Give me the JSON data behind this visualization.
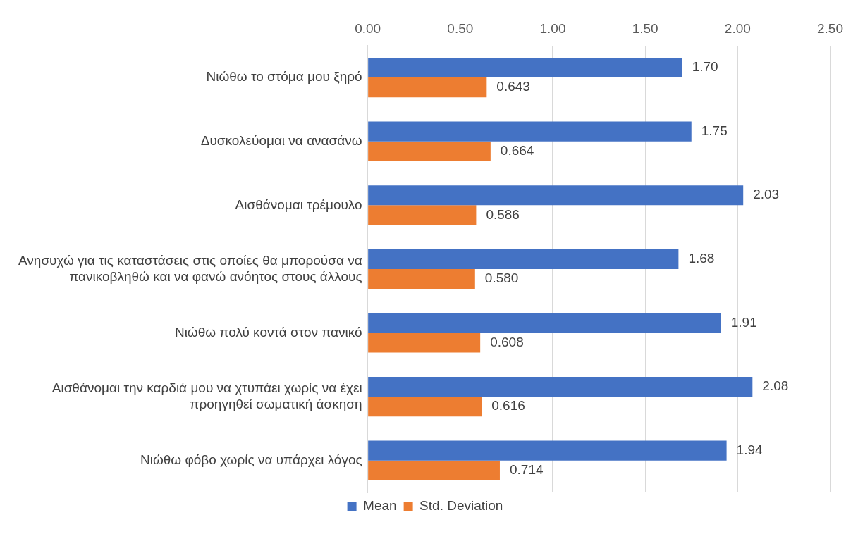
{
  "chart_data": {
    "type": "bar",
    "orientation": "horizontal",
    "categories": [
      "Νιώθω το στόμα μου ξηρό",
      "Δυσκολεύομαι να ανασάνω",
      "Αισθάνομαι τρέμουλο",
      "Ανησυχώ για τις καταστάσεις στις οποίες θα μπορούσα να πανικοβληθώ και να φανώ ανόητος στους άλλους",
      "Νιώθω πολύ κοντά στον πανικό",
      "Αισθάνομαι την καρδιά μου να χτυπάει χωρίς να έχει προηγηθεί σωματική άσκηση",
      "Νιώθω φόβο χωρίς να υπάρχει λόγος"
    ],
    "series": [
      {
        "name": "Mean",
        "color": "#4472c4",
        "values": [
          1.7,
          1.75,
          2.03,
          1.68,
          1.91,
          2.08,
          1.94
        ],
        "value_labels": [
          "1.70",
          "1.75",
          "2.03",
          "1.68",
          "1.91",
          "2.08",
          "1.94"
        ]
      },
      {
        "name": "Std. Deviation",
        "color": "#ed7d31",
        "values": [
          0.643,
          0.664,
          0.586,
          0.58,
          0.608,
          0.616,
          0.714
        ],
        "value_labels": [
          "0.643",
          "0.664",
          "0.586",
          "0.580",
          "0.608",
          "0.616",
          "0.714"
        ]
      }
    ],
    "xlim": [
      0,
      2.5
    ],
    "xticks": [
      {
        "value": 0,
        "label": "0.00"
      },
      {
        "value": 0.5,
        "label": "0.50"
      },
      {
        "value": 1,
        "label": "1.00"
      },
      {
        "value": 1.5,
        "label": "1.50"
      },
      {
        "value": 2,
        "label": "2.00"
      },
      {
        "value": 2.5,
        "label": "2.50"
      }
    ],
    "grid": "x",
    "legend": "bottom"
  }
}
